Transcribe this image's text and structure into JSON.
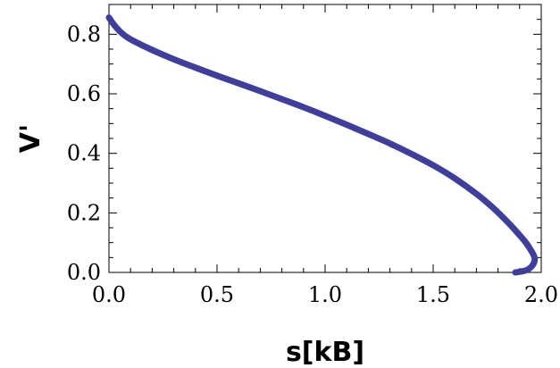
{
  "chart_data": {
    "type": "line",
    "title": "",
    "xlabel": "s[kB]",
    "ylabel": "V'",
    "xlim": [
      0.0,
      2.0
    ],
    "ylim": [
      0.0,
      0.9
    ],
    "xticks": [
      0.0,
      0.5,
      1.0,
      1.5,
      2.0
    ],
    "xtick_labels": [
      "0.0",
      "0.5",
      "1.0",
      "1.5",
      "2.0"
    ],
    "yticks": [
      0.0,
      0.2,
      0.4,
      0.6,
      0.8
    ],
    "ytick_labels": [
      "0.0",
      "0.2",
      "0.4",
      "0.6",
      "0.8"
    ],
    "grid": false,
    "legend": "none",
    "series": [
      {
        "color": "#3f3f99",
        "x": [
          0.0,
          0.015,
          0.03,
          0.05,
          0.08,
          0.12,
          0.2,
          0.3,
          0.4,
          0.5,
          0.6,
          0.7,
          0.8,
          0.9,
          1.0,
          1.1,
          1.2,
          1.3,
          1.4,
          1.5,
          1.6,
          1.7,
          1.78,
          1.85,
          1.9,
          1.93,
          1.95,
          1.965,
          1.97,
          1.965,
          1.95,
          1.93,
          1.9,
          1.88
        ],
        "y": [
          0.856,
          0.84,
          0.826,
          0.81,
          0.792,
          0.775,
          0.747,
          0.716,
          0.688,
          0.661,
          0.635,
          0.609,
          0.582,
          0.555,
          0.526,
          0.496,
          0.465,
          0.433,
          0.398,
          0.36,
          0.316,
          0.264,
          0.215,
          0.165,
          0.125,
          0.099,
          0.077,
          0.058,
          0.045,
          0.03,
          0.016,
          0.007,
          0.002,
          0.0
        ]
      }
    ]
  }
}
